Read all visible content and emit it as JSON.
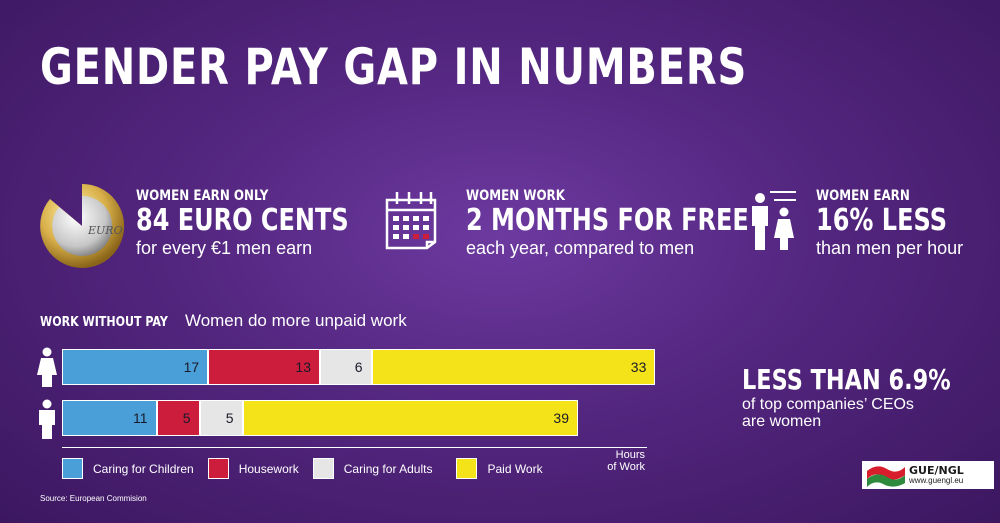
{
  "title": "GENDER PAY GAP IN NUMBERS",
  "stats": [
    {
      "label": "WOMEN EARN ONLY",
      "big": "84 EURO CENTS",
      "sub": "for every €1 men earn",
      "icon": "euro-coin-icon"
    },
    {
      "label": "WOMEN WORK",
      "big": "2 MONTHS FOR FREE",
      "sub": "each year, compared to men",
      "icon": "calendar-icon"
    },
    {
      "label": "WOMEN EARN",
      "big": "16% LESS",
      "sub": "than men per hour",
      "icon": "man-woman-icon"
    }
  ],
  "coin_text": "EURO",
  "section": {
    "key": "WORK WITHOUT PAY",
    "value": "Women do more unpaid work"
  },
  "chart_data": {
    "type": "bar",
    "orientation": "horizontal",
    "stacked": true,
    "categories": [
      "Women",
      "Men"
    ],
    "series": [
      {
        "name": "Caring for Children",
        "color": "#4a9fd8",
        "values": [
          17,
          11
        ]
      },
      {
        "name": "Housework",
        "color": "#cc1d3c",
        "values": [
          13,
          5
        ]
      },
      {
        "name": "Caring for Adults",
        "color": "#e6e6e6",
        "values": [
          6,
          5
        ]
      },
      {
        "name": "Paid Work",
        "color": "#f5e31a",
        "values": [
          33,
          39
        ]
      }
    ],
    "xlabel": "Hours of Work",
    "xlabel_lines": [
      "Hours",
      "of Work"
    ],
    "xlim": [
      0,
      72
    ],
    "legend": "bottom"
  },
  "ceo": {
    "big": "LESS THAN 6.9%",
    "line1": "of top companies’ CEOs",
    "line2": "are women"
  },
  "source": "Source: European Commision",
  "logo": {
    "name": "GUE/NGL",
    "url": "www.guengl.eu",
    "colors": [
      "#d81e2c",
      "#2e8b3e",
      "#ffffff"
    ]
  }
}
